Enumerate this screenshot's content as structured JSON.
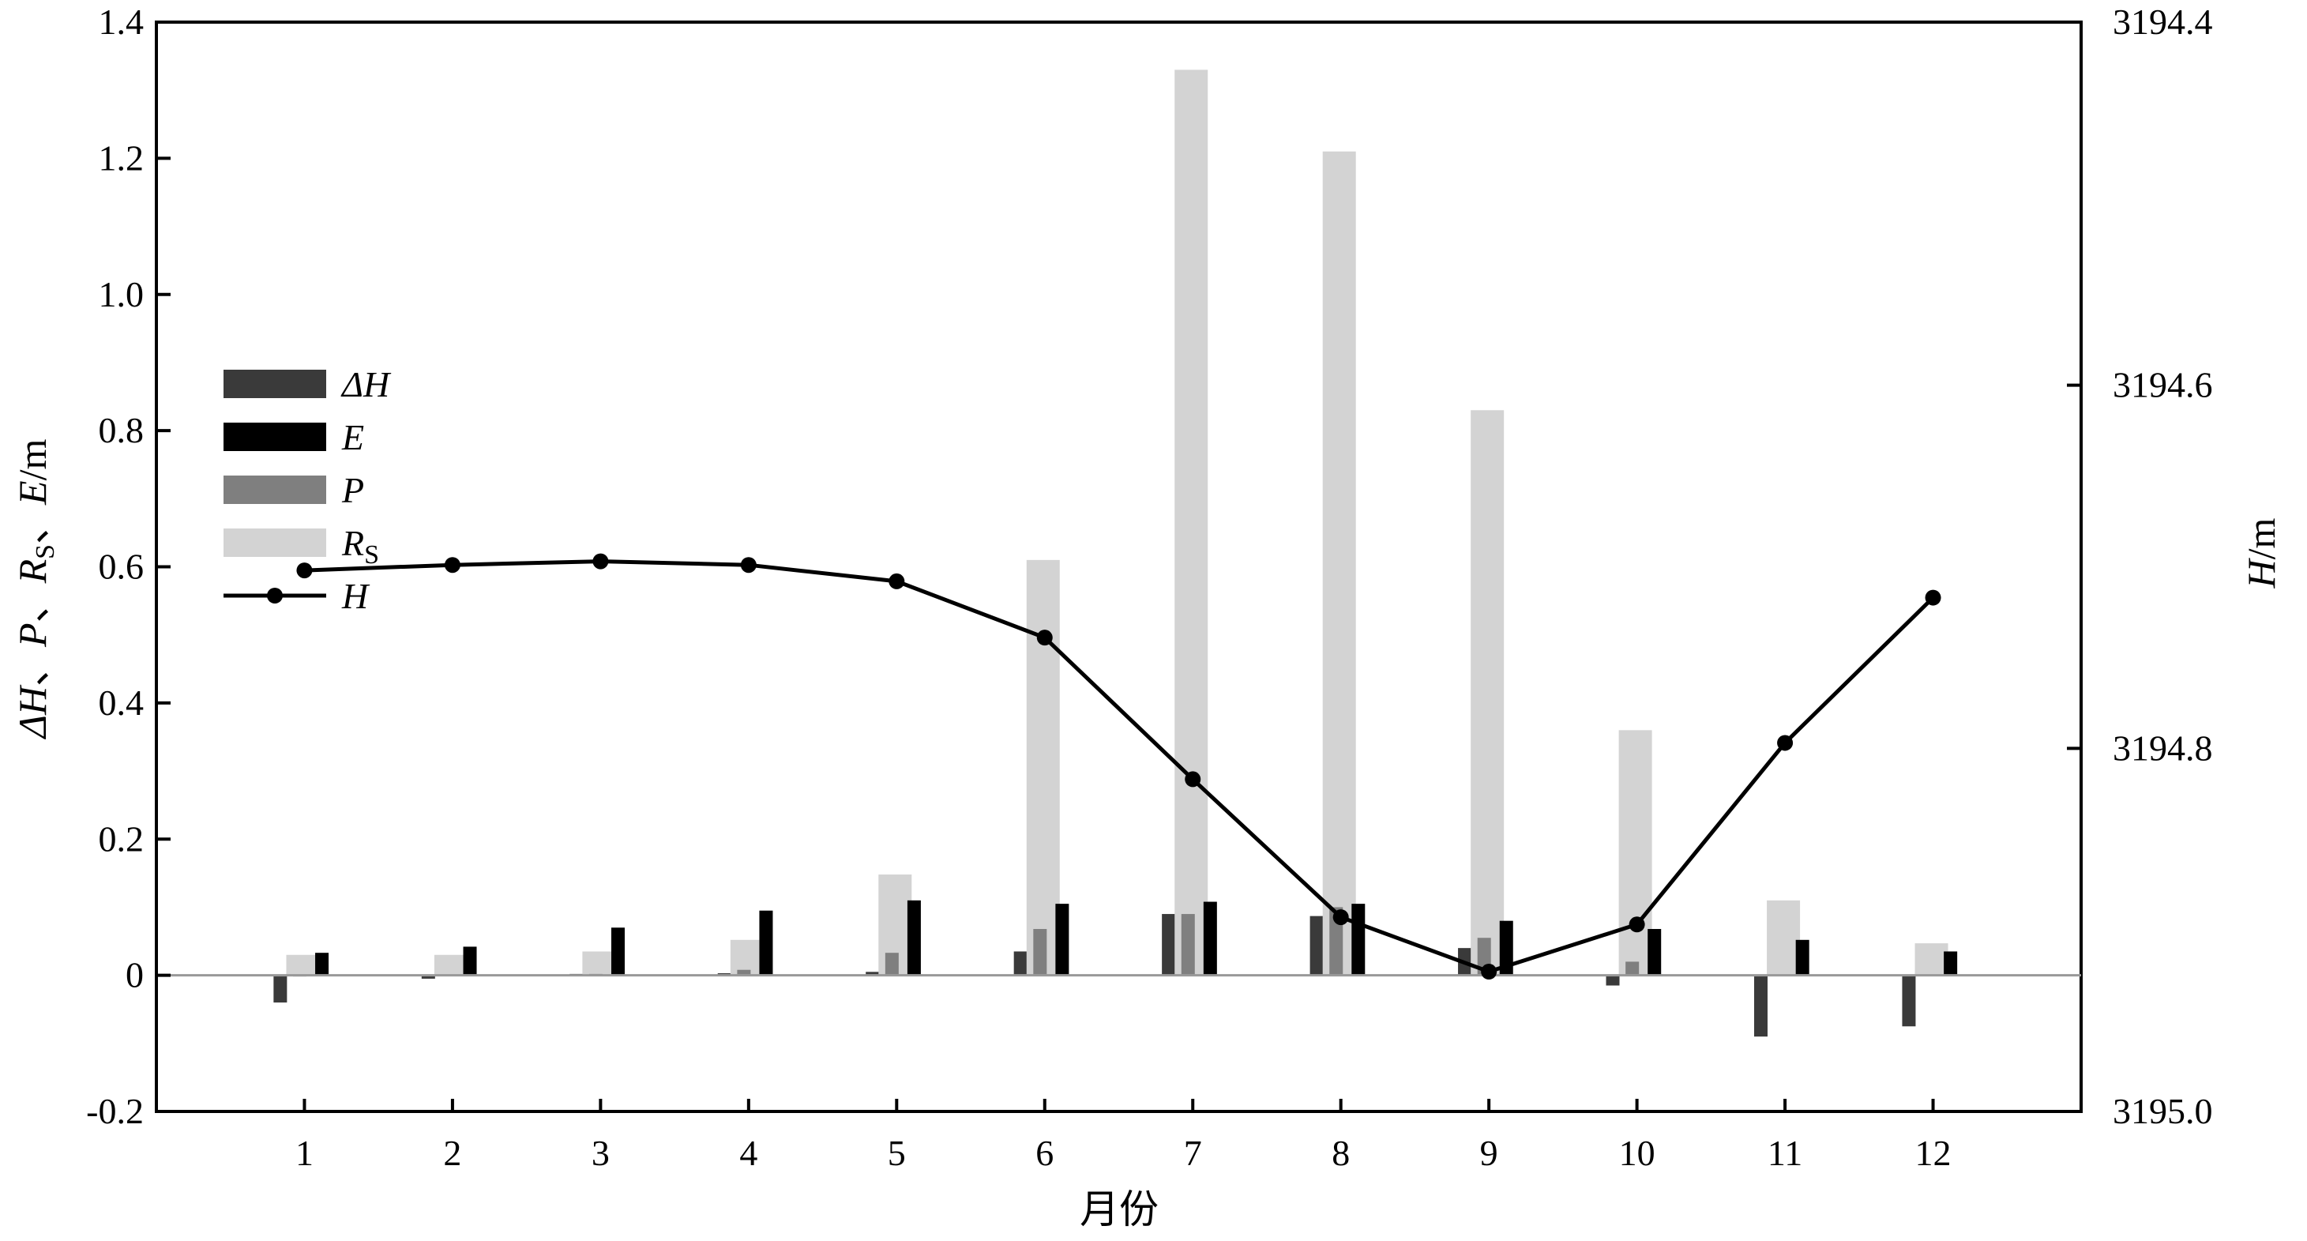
{
  "chart_data": {
    "type": "bar",
    "xlabel": "月份",
    "ylabel_parts": [
      "ΔH",
      "、",
      "P",
      "、",
      "R",
      "S",
      "、",
      "E",
      "/m"
    ],
    "y2label_parts": [
      "H",
      "/m"
    ],
    "ylim": [
      -0.2,
      1.4
    ],
    "y2lim": [
      3195.0,
      3194.4
    ],
    "y2_reversed": true,
    "grid": false,
    "legend_position": "left",
    "yticks": [
      "-0.2",
      "0",
      "0.2",
      "0.4",
      "0.6",
      "0.8",
      "1.0",
      "1.2",
      "1.4"
    ],
    "y2ticks": [
      "3195.0",
      "3194.8",
      "3194.6",
      "3194.4"
    ],
    "categories": [
      "1",
      "2",
      "3",
      "4",
      "5",
      "6",
      "7",
      "8",
      "9",
      "10",
      "11",
      "12"
    ],
    "series": [
      {
        "name": "ΔH",
        "color": "#3a3a3a",
        "values": [
          -0.04,
          -0.005,
          0.002,
          0.003,
          0.005,
          0.035,
          0.09,
          0.087,
          0.04,
          -0.015,
          -0.09,
          -0.075
        ]
      },
      {
        "name": "P",
        "color": "#7f7f7f",
        "values": [
          0.0,
          0.001,
          0.002,
          0.008,
          0.033,
          0.068,
          0.09,
          0.1,
          0.055,
          0.02,
          0.001,
          0.001
        ]
      },
      {
        "name": "R",
        "name_sub": "S",
        "color": "#d3d3d3",
        "values": [
          0.03,
          0.03,
          0.035,
          0.052,
          0.148,
          0.61,
          1.33,
          1.21,
          0.83,
          0.36,
          0.11,
          0.047
        ]
      },
      {
        "name": "E",
        "color": "#000000",
        "values": [
          0.033,
          0.042,
          0.07,
          0.095,
          0.11,
          0.105,
          0.108,
          0.105,
          0.08,
          0.068,
          0.052,
          0.035
        ]
      }
    ],
    "line_series": {
      "name": "H",
      "axis": "right",
      "color": "#000000",
      "values": [
        3194.702,
        3194.699,
        3194.697,
        3194.699,
        3194.708,
        3194.739,
        3194.817,
        3194.893,
        3194.923,
        3194.897,
        3194.797,
        3194.717
      ]
    },
    "legend_order": [
      "ΔH",
      "E",
      "P",
      "R",
      "H"
    ]
  }
}
